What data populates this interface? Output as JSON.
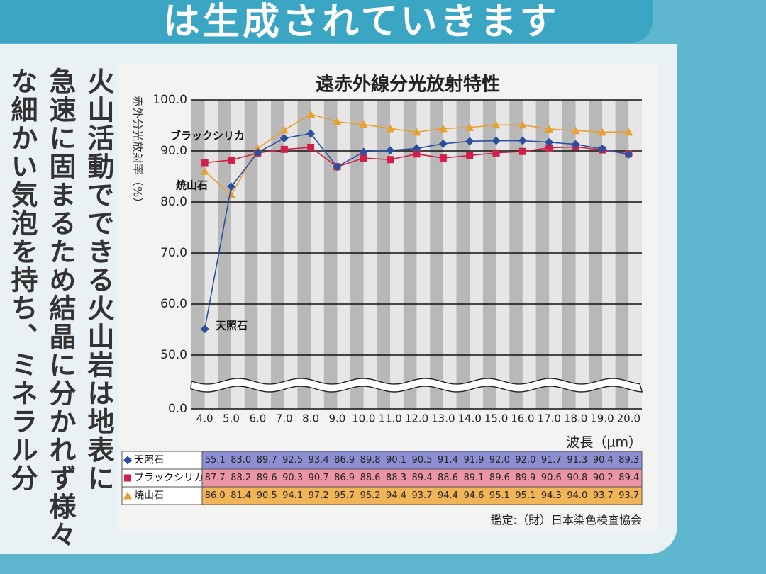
{
  "page": {
    "banner": "は生成されていきます",
    "columns": [
      "火山活動でできる火山岩は地表に",
      "急速に固まるため結晶に分かれず様々",
      "な細かい気泡を持ち、ミネラル分"
    ],
    "source": "鑑定:（財）日本染色検査協会"
  },
  "chart_data": {
    "type": "line",
    "title": "遠赤外線分光放射特性",
    "y_label": "赤外分光放射率（%）",
    "x_label": "波長（μm）",
    "categories": [
      "4.0",
      "5.0",
      "6.0",
      "7.0",
      "8.0",
      "9.0",
      "10.0",
      "11.0",
      "12.0",
      "13.0",
      "14.0",
      "15.0",
      "16.0",
      "17.0",
      "18.0",
      "19.0",
      "20.0"
    ],
    "ylim": [
      0,
      100
    ],
    "axis_break": [
      0,
      50
    ],
    "grid": true,
    "yticks": [
      {
        "value": 0,
        "label": "0.0"
      },
      {
        "value": 50,
        "label": "50.0"
      },
      {
        "value": 60,
        "label": "60.0"
      },
      {
        "value": 70,
        "label": "70.0"
      },
      {
        "value": 80,
        "label": "80.0"
      },
      {
        "value": 90,
        "label": "90.0"
      },
      {
        "value": 100,
        "label": "100.0"
      }
    ],
    "series": [
      {
        "name": "天照石",
        "color": "#2b4fa0",
        "marker": "diamond",
        "values": [
          55.1,
          83.0,
          89.7,
          92.5,
          93.4,
          86.9,
          89.8,
          90.1,
          90.5,
          91.4,
          91.9,
          92.0,
          92.0,
          91.7,
          91.3,
          90.4,
          89.3
        ],
        "value_labels": [
          "55.1",
          "83.0",
          "89.7",
          "92.5",
          "93.4",
          "86.9",
          "89.8",
          "90.1",
          "90.5",
          "91.4",
          "91.9",
          "92.0",
          "92.0",
          "91.7",
          "91.3",
          "90.4",
          "89.3"
        ]
      },
      {
        "name": "ブラックシリカ",
        "color": "#d0204a",
        "marker": "square",
        "values": [
          87.7,
          88.2,
          89.6,
          90.3,
          90.7,
          86.9,
          88.6,
          88.3,
          89.4,
          88.6,
          89.1,
          89.6,
          89.9,
          90.6,
          90.8,
          90.2,
          89.4
        ],
        "value_labels": [
          "87.7",
          "88.2",
          "89.6",
          "90.3",
          "90.7",
          "86.9",
          "88.6",
          "88.3",
          "89.4",
          "88.6",
          "89.1",
          "89.6",
          "89.9",
          "90.6",
          "90.8",
          "90.2",
          "89.4"
        ]
      },
      {
        "name": "焼山石",
        "color": "#e8a030",
        "marker": "triangle",
        "values": [
          86.0,
          81.4,
          90.5,
          94.1,
          97.2,
          95.7,
          95.2,
          94.4,
          93.7,
          94.4,
          94.6,
          95.1,
          95.1,
          94.3,
          94.0,
          93.7,
          93.7
        ],
        "value_labels": [
          "86.0",
          "81.4",
          "90.5",
          "94.1",
          "97.2",
          "95.7",
          "95.2",
          "94.4",
          "93.7",
          "94.4",
          "94.6",
          "95.1",
          "95.1",
          "94.3",
          "94.0",
          "93.7",
          "93.7"
        ]
      }
    ],
    "annotations": [
      {
        "text": "ブラックシリカ"
      },
      {
        "text": "焼山石"
      },
      {
        "text": "天照石"
      }
    ]
  }
}
